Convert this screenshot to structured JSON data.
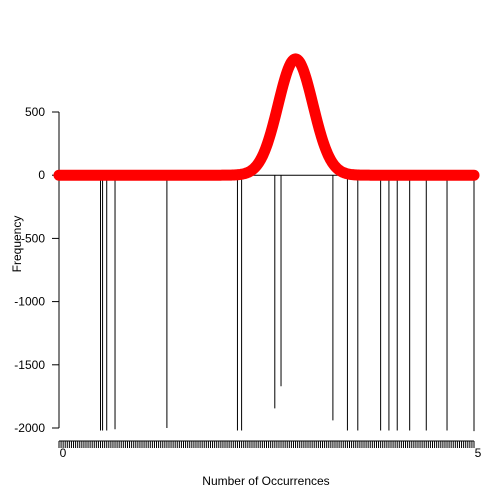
{
  "chart_data": {
    "type": "line",
    "xlabel": "Number of Occurrences",
    "ylabel": "Frequency",
    "ylim": [
      -2000,
      500
    ],
    "yticks": [
      {
        "value": 500,
        "label": "500"
      },
      {
        "value": 0,
        "label": "0"
      },
      {
        "value": -500,
        "label": "-500"
      },
      {
        "value": -1000,
        "label": "-1000"
      },
      {
        "value": -1500,
        "label": "-1500"
      },
      {
        "value": -2000,
        "label": "-2000"
      }
    ],
    "xlim": [
      0,
      1
    ],
    "x_tick_labels_first": "0",
    "x_tick_labels_last": "5",
    "curve": {
      "color": "#ff0000",
      "peak_x": 0.57,
      "peak_y": 920,
      "spread": 0.042,
      "baseline": 0
    },
    "drop_lines": [
      {
        "x": 0.1,
        "y": -2020
      },
      {
        "x": 0.105,
        "y": -2020
      },
      {
        "x": 0.115,
        "y": -2020
      },
      {
        "x": 0.135,
        "y": -2010
      },
      {
        "x": 0.26,
        "y": -2000
      },
      {
        "x": 0.43,
        "y": -2020
      },
      {
        "x": 0.44,
        "y": -2020
      },
      {
        "x": 0.52,
        "y": -1845
      },
      {
        "x": 0.535,
        "y": -1670
      },
      {
        "x": 0.66,
        "y": -1940
      },
      {
        "x": 0.695,
        "y": -2020
      },
      {
        "x": 0.72,
        "y": -2020
      },
      {
        "x": 0.775,
        "y": -2020
      },
      {
        "x": 0.795,
        "y": -2020
      },
      {
        "x": 0.815,
        "y": -2020
      },
      {
        "x": 0.845,
        "y": -2020
      },
      {
        "x": 0.885,
        "y": -2020
      },
      {
        "x": 0.935,
        "y": -2020
      },
      {
        "x": 1.0,
        "y": -2025
      }
    ]
  }
}
